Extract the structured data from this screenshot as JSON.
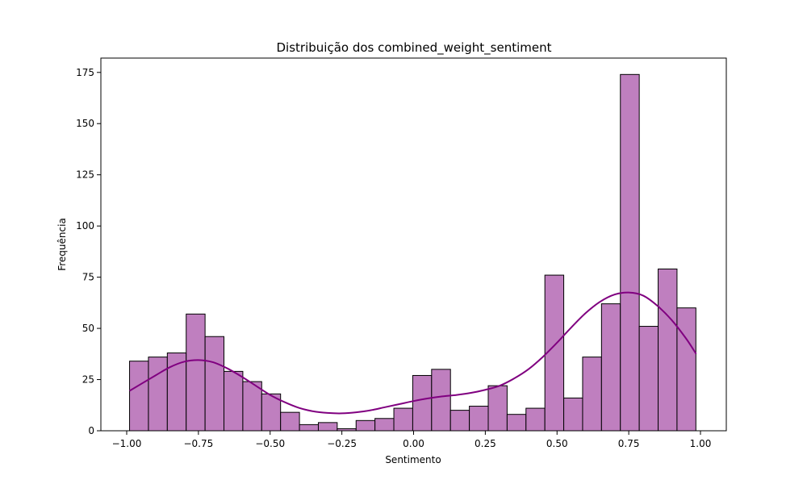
{
  "chart_data": {
    "type": "bar",
    "subtype": "histogram-with-kde",
    "title": "Distribuição dos combined_weight_sentiment",
    "xlabel": "Sentimento",
    "ylabel": "Frequência",
    "xlim": [
      -1.09,
      1.09
    ],
    "ylim": [
      0,
      182
    ],
    "xticks": [
      -1.0,
      -0.75,
      -0.5,
      -0.25,
      0.0,
      0.25,
      0.5,
      0.75,
      1.0
    ],
    "xtick_labels": [
      "−1.00",
      "−0.75",
      "−0.50",
      "−0.25",
      "0.00",
      "0.25",
      "0.50",
      "0.75",
      "1.00"
    ],
    "yticks": [
      0,
      25,
      50,
      75,
      100,
      125,
      150,
      175
    ],
    "ytick_labels": [
      "0",
      "25",
      "50",
      "75",
      "100",
      "125",
      "150",
      "175"
    ],
    "bins": {
      "start": -0.99,
      "end": 0.985,
      "width": 0.0658,
      "counts": [
        34,
        36,
        38,
        57,
        46,
        29,
        24,
        18,
        9,
        3,
        4,
        1,
        5,
        6,
        11,
        27,
        30,
        10,
        12,
        22,
        8,
        11,
        76,
        16,
        36,
        62,
        174,
        51,
        79,
        60
      ]
    },
    "kde": {
      "x": [
        -0.99,
        -0.9,
        -0.85,
        -0.8,
        -0.75,
        -0.7,
        -0.65,
        -0.6,
        -0.55,
        -0.5,
        -0.45,
        -0.4,
        -0.35,
        -0.3,
        -0.25,
        -0.2,
        -0.15,
        -0.1,
        -0.05,
        0.0,
        0.05,
        0.1,
        0.15,
        0.2,
        0.25,
        0.3,
        0.35,
        0.4,
        0.45,
        0.5,
        0.55,
        0.6,
        0.65,
        0.7,
        0.75,
        0.8,
        0.85,
        0.9,
        0.95,
        0.985
      ],
      "y": [
        19.5,
        27,
        31,
        33.7,
        34.5,
        33.5,
        30.5,
        26.5,
        22,
        17.5,
        14,
        11.2,
        9.5,
        8.7,
        8.5,
        9,
        10,
        11.5,
        13,
        14.5,
        15.8,
        16.8,
        17.5,
        18.5,
        20,
        22,
        25.5,
        30,
        36,
        43,
        50.5,
        57.5,
        63,
        66.5,
        67.5,
        66,
        61,
        54,
        45,
        37.5
      ]
    },
    "colors": {
      "bar_fill": "#bf7fbf",
      "bar_edge": "#000000",
      "kde_line": "#800080"
    },
    "grid": false,
    "legend": "none"
  }
}
